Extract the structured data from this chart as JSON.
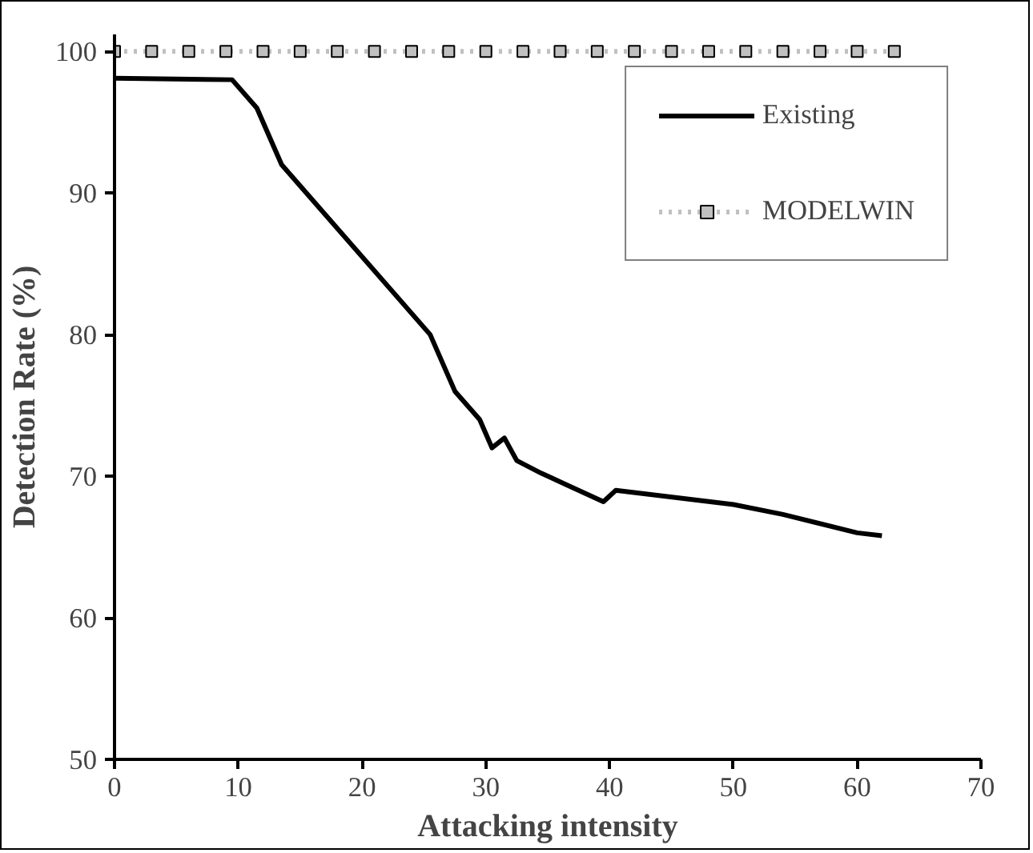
{
  "chart_data": {
    "type": "line",
    "xlabel": "Attacking intensity",
    "ylabel": "Detection Rate (%)",
    "xlim": [
      0,
      70
    ],
    "ylim": [
      50,
      101.2
    ],
    "xticks": [
      0,
      10,
      20,
      30,
      40,
      50,
      60,
      70
    ],
    "yticks": [
      50,
      60,
      70,
      80,
      90,
      100
    ],
    "grid": false,
    "legend": "top right",
    "series": [
      {
        "name": "Existing",
        "color": "#000000",
        "line_style": "solid",
        "marker": "none",
        "x": [
          0,
          9.5,
          11.5,
          13.5,
          25.5,
          27.5,
          29.5,
          30.5,
          31.5,
          32.5,
          34.5,
          35,
          36.5,
          39.5,
          40.5,
          50,
          54,
          60,
          62
        ],
        "values": [
          98.1,
          98,
          96,
          92,
          80,
          76,
          74,
          72,
          72.7,
          71.1,
          70.2,
          70,
          69.4,
          68.2,
          69,
          68,
          67.3,
          66,
          65.8
        ]
      },
      {
        "name": "MODELWIN",
        "color": "#c0c0c0",
        "line_style": "dotted",
        "marker": "square",
        "x": [
          0,
          3,
          6,
          9,
          12,
          15,
          18,
          21,
          24,
          27,
          30,
          33,
          36,
          39,
          42,
          45,
          48,
          51,
          54,
          57,
          60,
          63
        ],
        "values": [
          100,
          100,
          100,
          100,
          100,
          100,
          100,
          100,
          100,
          100,
          100,
          100,
          100,
          100,
          100,
          100,
          100,
          100,
          100,
          100,
          100,
          100
        ]
      }
    ]
  }
}
